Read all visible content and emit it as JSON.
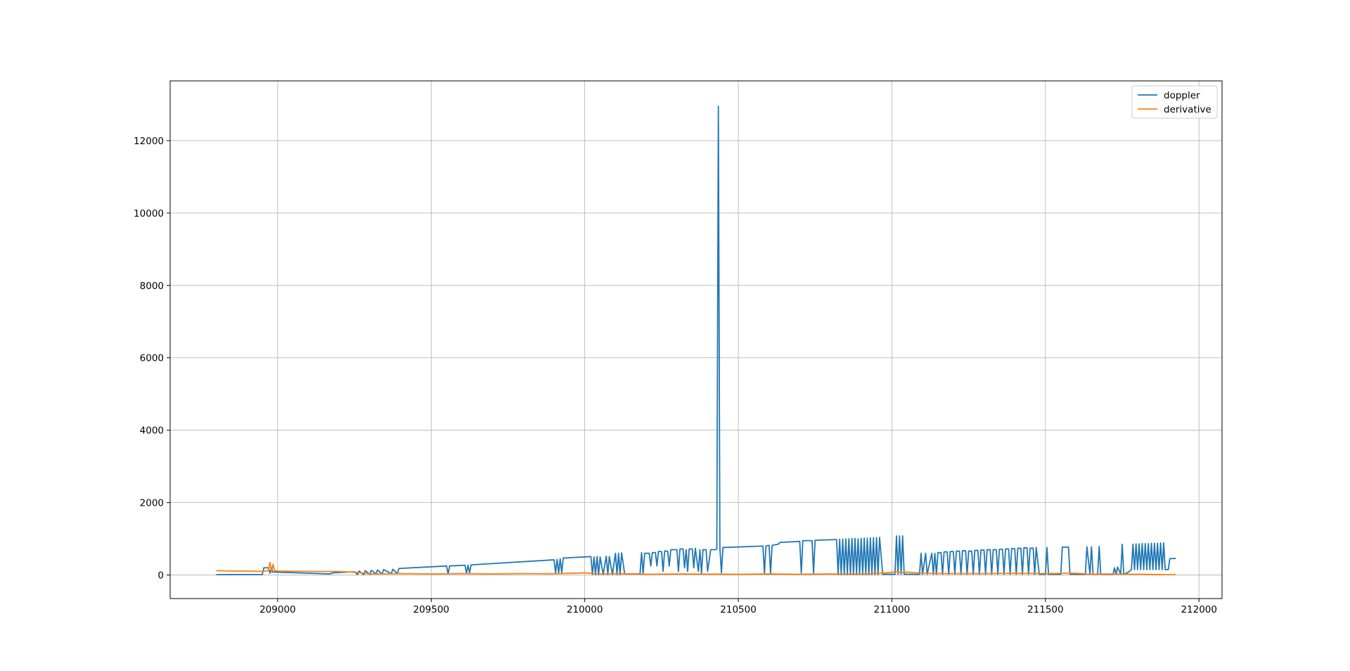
{
  "chart_data": {
    "type": "line",
    "title": "",
    "xlabel": "",
    "ylabel": "",
    "xlim": [
      208650,
      212075
    ],
    "ylim": [
      -650,
      13650
    ],
    "xticks": [
      209000,
      209500,
      210000,
      210500,
      211000,
      211500,
      212000
    ],
    "yticks": [
      0,
      2000,
      4000,
      6000,
      8000,
      10000,
      12000
    ],
    "grid": true,
    "legend_position": "top-right",
    "series": [
      {
        "name": "doppler",
        "color": "#1f77b4",
        "points": [
          [
            208800,
            10
          ],
          [
            208950,
            15
          ],
          [
            208955,
            200
          ],
          [
            208970,
            200
          ],
          [
            208975,
            50
          ],
          [
            208980,
            200
          ],
          [
            208985,
            80
          ],
          [
            209000,
            80
          ],
          [
            209170,
            30
          ],
          [
            209180,
            60
          ],
          [
            209250,
            90
          ],
          [
            209260,
            10
          ],
          [
            209265,
            110
          ],
          [
            209280,
            10
          ],
          [
            209285,
            120
          ],
          [
            209300,
            20
          ],
          [
            209305,
            130
          ],
          [
            209320,
            30
          ],
          [
            209325,
            140
          ],
          [
            209340,
            30
          ],
          [
            209345,
            150
          ],
          [
            209370,
            40
          ],
          [
            209375,
            160
          ],
          [
            209390,
            40
          ],
          [
            209395,
            180
          ],
          [
            209550,
            250
          ],
          [
            209555,
            30
          ],
          [
            209560,
            250
          ],
          [
            209610,
            270
          ],
          [
            209615,
            50
          ],
          [
            209620,
            270
          ],
          [
            209625,
            60
          ],
          [
            209630,
            280
          ],
          [
            209900,
            420
          ],
          [
            209905,
            60
          ],
          [
            209910,
            430
          ],
          [
            209915,
            60
          ],
          [
            209920,
            450
          ],
          [
            209925,
            60
          ],
          [
            209930,
            470
          ],
          [
            210020,
            510
          ],
          [
            210025,
            10
          ],
          [
            210030,
            500
          ],
          [
            210035,
            10
          ],
          [
            210040,
            510
          ],
          [
            210045,
            10
          ],
          [
            210050,
            500
          ],
          [
            210060,
            10
          ],
          [
            210070,
            520
          ],
          [
            210075,
            10
          ],
          [
            210080,
            510
          ],
          [
            210090,
            10
          ],
          [
            210100,
            600
          ],
          [
            210105,
            10
          ],
          [
            210110,
            600
          ],
          [
            210115,
            10
          ],
          [
            210120,
            610
          ],
          [
            210130,
            30
          ],
          [
            210180,
            30
          ],
          [
            210185,
            620
          ],
          [
            210190,
            30
          ],
          [
            210195,
            600
          ],
          [
            210210,
            600
          ],
          [
            210215,
            250
          ],
          [
            210220,
            620
          ],
          [
            210230,
            620
          ],
          [
            210235,
            250
          ],
          [
            210240,
            650
          ],
          [
            210250,
            650
          ],
          [
            210255,
            100
          ],
          [
            210260,
            660
          ],
          [
            210270,
            660
          ],
          [
            210275,
            250
          ],
          [
            210280,
            700
          ],
          [
            210300,
            700
          ],
          [
            210305,
            100
          ],
          [
            210310,
            720
          ],
          [
            210320,
            720
          ],
          [
            210325,
            200
          ],
          [
            210330,
            700
          ],
          [
            210335,
            100
          ],
          [
            210340,
            720
          ],
          [
            210350,
            720
          ],
          [
            210355,
            200
          ],
          [
            210360,
            740
          ],
          [
            210370,
            100
          ],
          [
            210375,
            700
          ],
          [
            210380,
            50
          ],
          [
            210385,
            700
          ],
          [
            210395,
            700
          ],
          [
            210400,
            100
          ],
          [
            210410,
            700
          ],
          [
            210420,
            700
          ],
          [
            210425,
            700
          ],
          [
            210430,
            720
          ],
          [
            210435,
            12950
          ],
          [
            210440,
            750
          ],
          [
            210445,
            60
          ],
          [
            210450,
            760
          ],
          [
            210580,
            800
          ],
          [
            210585,
            50
          ],
          [
            210590,
            800
          ],
          [
            210600,
            820
          ],
          [
            210605,
            50
          ],
          [
            210610,
            820
          ],
          [
            210630,
            850
          ],
          [
            210635,
            900
          ],
          [
            210700,
            930
          ],
          [
            210705,
            50
          ],
          [
            210710,
            950
          ],
          [
            210740,
            950
          ],
          [
            210745,
            50
          ],
          [
            210750,
            960
          ],
          [
            210820,
            980
          ],
          [
            210825,
            10
          ],
          [
            210830,
            990
          ],
          [
            210835,
            10
          ],
          [
            210840,
            990
          ],
          [
            210845,
            10
          ],
          [
            210850,
            1000
          ],
          [
            210855,
            10
          ],
          [
            210860,
            1000
          ],
          [
            210865,
            10
          ],
          [
            210870,
            1010
          ],
          [
            210875,
            10
          ],
          [
            210880,
            1010
          ],
          [
            210885,
            10
          ],
          [
            210890,
            1000
          ],
          [
            210895,
            10
          ],
          [
            210900,
            1010
          ],
          [
            210905,
            10
          ],
          [
            210910,
            1020
          ],
          [
            210915,
            10
          ],
          [
            210920,
            1020
          ],
          [
            210925,
            10
          ],
          [
            210930,
            1030
          ],
          [
            210935,
            10
          ],
          [
            210940,
            1030
          ],
          [
            210945,
            10
          ],
          [
            210950,
            1030
          ],
          [
            210955,
            10
          ],
          [
            210960,
            1040
          ],
          [
            210970,
            20
          ],
          [
            211010,
            20
          ],
          [
            211015,
            1080
          ],
          [
            211020,
            20
          ],
          [
            211025,
            1080
          ],
          [
            211030,
            20
          ],
          [
            211035,
            1080
          ],
          [
            211040,
            20
          ],
          [
            211090,
            20
          ],
          [
            211095,
            600
          ],
          [
            211100,
            20
          ],
          [
            211110,
            600
          ],
          [
            211115,
            20
          ],
          [
            211130,
            600
          ],
          [
            211135,
            20
          ],
          [
            211140,
            600
          ],
          [
            211145,
            20
          ],
          [
            211150,
            620
          ],
          [
            211160,
            620
          ],
          [
            211165,
            20
          ],
          [
            211170,
            640
          ],
          [
            211180,
            640
          ],
          [
            211185,
            20
          ],
          [
            211190,
            650
          ],
          [
            211200,
            650
          ],
          [
            211205,
            20
          ],
          [
            211210,
            660
          ],
          [
            211220,
            660
          ],
          [
            211225,
            20
          ],
          [
            211230,
            670
          ],
          [
            211240,
            670
          ],
          [
            211245,
            20
          ],
          [
            211250,
            660
          ],
          [
            211260,
            660
          ],
          [
            211265,
            20
          ],
          [
            211270,
            680
          ],
          [
            211280,
            680
          ],
          [
            211285,
            20
          ],
          [
            211290,
            690
          ],
          [
            211300,
            690
          ],
          [
            211305,
            20
          ],
          [
            211310,
            700
          ],
          [
            211320,
            700
          ],
          [
            211325,
            20
          ],
          [
            211330,
            700
          ],
          [
            211340,
            700
          ],
          [
            211345,
            20
          ],
          [
            211350,
            710
          ],
          [
            211360,
            710
          ],
          [
            211365,
            20
          ],
          [
            211370,
            720
          ],
          [
            211380,
            720
          ],
          [
            211385,
            20
          ],
          [
            211390,
            730
          ],
          [
            211400,
            730
          ],
          [
            211405,
            20
          ],
          [
            211410,
            740
          ],
          [
            211420,
            740
          ],
          [
            211425,
            20
          ],
          [
            211430,
            750
          ],
          [
            211440,
            750
          ],
          [
            211445,
            20
          ],
          [
            211450,
            740
          ],
          [
            211460,
            740
          ],
          [
            211465,
            20
          ],
          [
            211470,
            760
          ],
          [
            211480,
            20
          ],
          [
            211500,
            20
          ],
          [
            211505,
            760
          ],
          [
            211510,
            20
          ],
          [
            211550,
            20
          ],
          [
            211555,
            770
          ],
          [
            211575,
            770
          ],
          [
            211580,
            20
          ],
          [
            211630,
            20
          ],
          [
            211635,
            780
          ],
          [
            211645,
            20
          ],
          [
            211650,
            780
          ],
          [
            211655,
            20
          ],
          [
            211670,
            20
          ],
          [
            211675,
            790
          ],
          [
            211680,
            20
          ],
          [
            211720,
            20
          ],
          [
            211725,
            200
          ],
          [
            211730,
            20
          ],
          [
            211735,
            220
          ],
          [
            211745,
            20
          ],
          [
            211750,
            850
          ],
          [
            211755,
            20
          ],
          [
            211770,
            80
          ],
          [
            211780,
            150
          ],
          [
            211785,
            850
          ],
          [
            211790,
            150
          ],
          [
            211795,
            860
          ],
          [
            211800,
            150
          ],
          [
            211805,
            860
          ],
          [
            211810,
            150
          ],
          [
            211815,
            870
          ],
          [
            211820,
            150
          ],
          [
            211825,
            870
          ],
          [
            211830,
            150
          ],
          [
            211835,
            870
          ],
          [
            211840,
            150
          ],
          [
            211845,
            880
          ],
          [
            211850,
            150
          ],
          [
            211855,
            880
          ],
          [
            211860,
            150
          ],
          [
            211865,
            880
          ],
          [
            211870,
            150
          ],
          [
            211875,
            890
          ],
          [
            211880,
            150
          ],
          [
            211885,
            890
          ],
          [
            211890,
            150
          ],
          [
            211900,
            150
          ],
          [
            211905,
            450
          ],
          [
            211925,
            460
          ]
        ]
      },
      {
        "name": "derivative",
        "color": "#ff7f0e",
        "points": [
          [
            208800,
            120
          ],
          [
            208850,
            110
          ],
          [
            208900,
            110
          ],
          [
            208950,
            100
          ],
          [
            208970,
            120
          ],
          [
            208975,
            350
          ],
          [
            208980,
            80
          ],
          [
            208985,
            300
          ],
          [
            208990,
            120
          ],
          [
            209000,
            110
          ],
          [
            209100,
            100
          ],
          [
            209200,
            95
          ],
          [
            209250,
            80
          ],
          [
            209280,
            50
          ],
          [
            209300,
            30
          ],
          [
            209400,
            40
          ],
          [
            209500,
            30
          ],
          [
            209600,
            40
          ],
          [
            209700,
            30
          ],
          [
            209800,
            40
          ],
          [
            209900,
            35
          ],
          [
            210000,
            60
          ],
          [
            210050,
            30
          ],
          [
            210100,
            40
          ],
          [
            210200,
            20
          ],
          [
            210300,
            30
          ],
          [
            210400,
            25
          ],
          [
            210500,
            20
          ],
          [
            210600,
            30
          ],
          [
            210700,
            20
          ],
          [
            210800,
            30
          ],
          [
            210900,
            25
          ],
          [
            211000,
            70
          ],
          [
            211010,
            100
          ],
          [
            211030,
            60
          ],
          [
            211050,
            80
          ],
          [
            211100,
            50
          ],
          [
            211200,
            40
          ],
          [
            211300,
            40
          ],
          [
            211400,
            50
          ],
          [
            211500,
            40
          ],
          [
            211600,
            50
          ],
          [
            211650,
            20
          ],
          [
            211700,
            30
          ],
          [
            211800,
            20
          ],
          [
            211900,
            10
          ],
          [
            211925,
            10
          ]
        ]
      }
    ]
  }
}
